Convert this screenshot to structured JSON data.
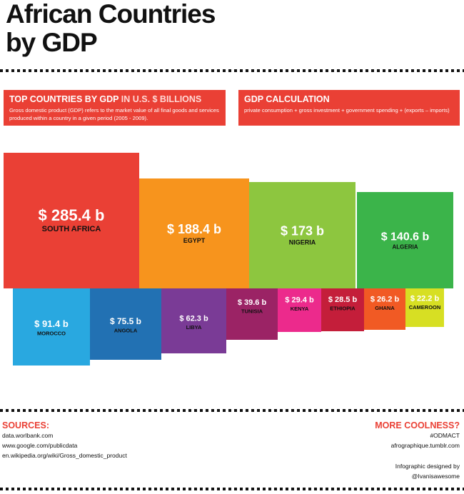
{
  "title": {
    "line1": "African Countries",
    "line2": "by GDP"
  },
  "intro": {
    "heading_main": "TOP COUNTRIES BY GDP",
    "heading_accent": " IN U.S. $ BILLIONS",
    "text": "Gross domestic product (GDP) refers to the market value of all final goods and services produced within a country in a given period (2005 - 2009)."
  },
  "calculation": {
    "heading": "GDP CALCULATION",
    "text": "private consumption + gross investment + government spending + (exports – imports)"
  },
  "colors": {
    "accent": "#ea4035"
  },
  "chart_data": {
    "type": "treemap",
    "title": "African Countries by GDP",
    "unit": "U.S. $ billions",
    "series": [
      {
        "country": "SOUTH AFRICA",
        "value": 285.4,
        "label": "$ 285.4 b",
        "color": "#ea4035"
      },
      {
        "country": "EGYPT",
        "value": 188.4,
        "label": "$ 188.4 b",
        "color": "#f7941d"
      },
      {
        "country": "NIGERIA",
        "value": 173,
        "label": "$ 173 b",
        "color": "#8dc63f"
      },
      {
        "country": "ALGERIA",
        "value": 140.6,
        "label": "$ 140.6 b",
        "color": "#3bb44a"
      },
      {
        "country": "MOROCCO",
        "value": 91.4,
        "label": "$ 91.4 b",
        "color": "#29a8e0"
      },
      {
        "country": "ANGOLA",
        "value": 75.5,
        "label": "$ 75.5 b",
        "color": "#2271b3"
      },
      {
        "country": "LIBYA",
        "value": 62.3,
        "label": "$ 62.3 b",
        "color": "#7a3b96"
      },
      {
        "country": "TUNISIA",
        "value": 39.6,
        "label": "$ 39.6 b",
        "color": "#9b2365"
      },
      {
        "country": "KENYA",
        "value": 29.4,
        "label": "$ 29.4 b",
        "color": "#ec2a8c"
      },
      {
        "country": "ETHIOPIA",
        "value": 28.5,
        "label": "$ 28.5 b",
        "color": "#c41e3a"
      },
      {
        "country": "GHANA",
        "value": 26.2,
        "label": "$ 26.2 b",
        "color": "#f15a24"
      },
      {
        "country": "CAMEROON",
        "value": 22.2,
        "label": "$ 22.2 b",
        "color": "#d7df23"
      }
    ]
  },
  "sources": {
    "heading": "SOURCES:",
    "items": [
      "data.worlbank.com",
      "www.google.com/publicdata",
      "en.wikipedia.org/wiki/Gross_domestic_product"
    ]
  },
  "more": {
    "heading": "MORE COOLNESS?",
    "tag": "#ODMACT",
    "site": "afrographique.tumblr.com",
    "designed_by": "Infographic designed by",
    "author": "@Ivanisawesome"
  }
}
